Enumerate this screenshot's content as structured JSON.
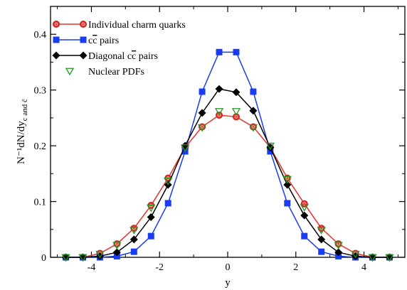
{
  "chart_data": {
    "type": "line",
    "xlabel": "y",
    "ylabel": "N⁻¹dN/dy",
    "ylabel_sub": "c and c̄",
    "xlim": [
      -5.2,
      5.2
    ],
    "ylim": [
      0,
      0.45
    ],
    "x_ticks": [
      -4,
      -2,
      0,
      2,
      4
    ],
    "x_tick_labels": [
      "-4",
      "-2",
      "0",
      "2",
      "4"
    ],
    "y_ticks": [
      0,
      0.1,
      0.2,
      0.3,
      0.4
    ],
    "y_tick_labels": [
      "0",
      "0.1",
      "0.2",
      "0.3",
      "0.4"
    ],
    "legend_placement": "top-left",
    "x": [
      -4.75,
      -4.25,
      -3.75,
      -3.25,
      -2.75,
      -2.25,
      -1.75,
      -1.25,
      -0.75,
      -0.25,
      0.25,
      0.75,
      1.25,
      1.75,
      2.25,
      2.75,
      3.25,
      3.75,
      4.25,
      4.75
    ],
    "series": [
      {
        "name": "Individual charm quarks",
        "color": "#e8322b",
        "marker": "circle",
        "line": true,
        "values": [
          0.0,
          0.0,
          0.007,
          0.024,
          0.052,
          0.093,
          0.142,
          0.197,
          0.234,
          0.255,
          0.252,
          0.234,
          0.197,
          0.142,
          0.096,
          0.052,
          0.024,
          0.007,
          0.0,
          0.0
        ]
      },
      {
        "name_prefix": "c",
        "name_overbar": "c",
        "name_suffix": " pairs",
        "color": "#1a3cf0",
        "marker": "square",
        "line": true,
        "values": [
          0.0,
          0.0,
          0.0,
          0.002,
          0.01,
          0.038,
          0.097,
          0.19,
          0.297,
          0.368,
          0.368,
          0.297,
          0.19,
          0.097,
          0.038,
          0.01,
          0.002,
          0.0,
          0.0,
          0.0
        ]
      },
      {
        "name_prefix": "Diagonal c",
        "name_overbar": "c",
        "name_suffix": " pairs",
        "color": "#000000",
        "marker": "diamond",
        "line": true,
        "values": [
          0.0,
          0.0,
          0.002,
          0.009,
          0.032,
          0.072,
          0.13,
          0.2,
          0.259,
          0.302,
          0.296,
          0.263,
          0.197,
          0.13,
          0.075,
          0.032,
          0.009,
          0.002,
          0.0,
          0.0
        ]
      },
      {
        "name": "Nuclear PDFs",
        "color": "#1f9a1f",
        "marker": "triangle-down",
        "line": false,
        "values": [
          0.0,
          0.0,
          0.006,
          0.022,
          0.049,
          0.089,
          0.137,
          0.197,
          0.233,
          0.262,
          0.262,
          0.233,
          0.2,
          0.14,
          0.09,
          0.049,
          0.022,
          0.006,
          0.0,
          0.0
        ]
      }
    ]
  }
}
